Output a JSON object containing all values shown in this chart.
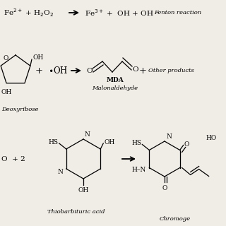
{
  "background_color": "#f0ece6",
  "fenton_left": "Fe$^{2+}$ + H$_2$O$_2$",
  "fenton_right": "Fe$^{3+}$ +  OH + OH",
  "fenton_label": "Fenton reaction",
  "oh_radical": "$\\bullet$OH",
  "mda_label": "MDA",
  "malonaldehyde_label": "Malonaldehyde",
  "other_products": "Other products",
  "deoxyribose_label": "Deoxyribose",
  "tba_left": "O  + 2",
  "tba_label": "Thiobarbituric acid",
  "chromogen_label": "Chromoge"
}
